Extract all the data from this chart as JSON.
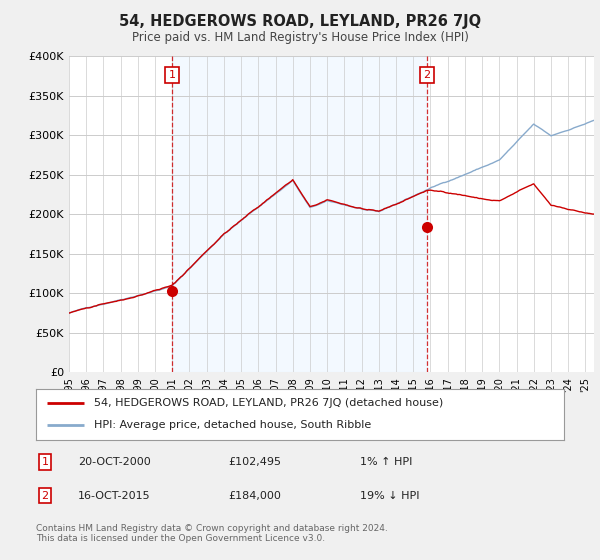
{
  "title": "54, HEDGEROWS ROAD, LEYLAND, PR26 7JQ",
  "subtitle": "Price paid vs. HM Land Registry's House Price Index (HPI)",
  "ylim": [
    0,
    400000
  ],
  "yticks": [
    0,
    50000,
    100000,
    150000,
    200000,
    250000,
    300000,
    350000,
    400000
  ],
  "ytick_labels": [
    "£0",
    "£50K",
    "£100K",
    "£150K",
    "£200K",
    "£250K",
    "£300K",
    "£350K",
    "£400K"
  ],
  "xlim_start": 1995.0,
  "xlim_end": 2025.5,
  "bg_color": "#f0f0f0",
  "plot_bg_color": "#ffffff",
  "shade_color": "#ddeeff",
  "grid_color": "#cccccc",
  "red_color": "#cc0000",
  "blue_color": "#88aacc",
  "transaction1_x": 2001.0,
  "transaction1_y": 102495,
  "transaction2_x": 2015.8,
  "transaction2_y": 184000,
  "vline1_x": 2001.0,
  "vline2_x": 2015.8,
  "legend_line1": "54, HEDGEROWS ROAD, LEYLAND, PR26 7JQ (detached house)",
  "legend_line2": "HPI: Average price, detached house, South Ribble",
  "ann1_num": "1",
  "ann1_date": "20-OCT-2000",
  "ann1_price": "£102,495",
  "ann1_hpi": "1% ↑ HPI",
  "ann2_num": "2",
  "ann2_date": "16-OCT-2015",
  "ann2_price": "£184,000",
  "ann2_hpi": "19% ↓ HPI",
  "footer": "Contains HM Land Registry data © Crown copyright and database right 2024.\nThis data is licensed under the Open Government Licence v3.0."
}
